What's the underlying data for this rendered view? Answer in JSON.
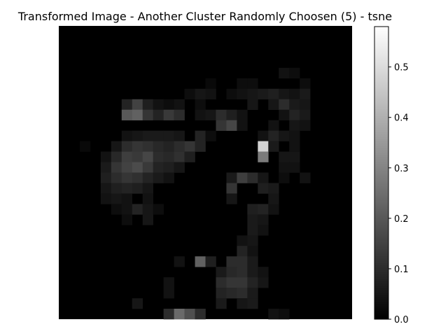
{
  "chart_data": {
    "type": "heatmap",
    "title": "Transformed Image - Another Cluster Randomly Choosen (5) - tsne",
    "colormap": "gray",
    "axes_visible": false,
    "grid": false,
    "vmin": 0.0,
    "vmax": 0.58,
    "colorbar": {
      "ticks": [
        0.0,
        0.1,
        0.2,
        0.3,
        0.4,
        0.5
      ],
      "tick_labels": [
        "0.0",
        "0.1",
        "0.2",
        "0.3",
        "0.4",
        "0.5"
      ]
    },
    "rows": 28,
    "cols": 28,
    "background_value": 0.0,
    "cells": [
      [
        4,
        21,
        0.04
      ],
      [
        4,
        22,
        0.03
      ],
      [
        5,
        14,
        0.02
      ],
      [
        5,
        17,
        0.03
      ],
      [
        5,
        18,
        0.03
      ],
      [
        5,
        23,
        0.03
      ],
      [
        6,
        12,
        0.03
      ],
      [
        6,
        13,
        0.05
      ],
      [
        6,
        14,
        0.04
      ],
      [
        6,
        16,
        0.03
      ],
      [
        6,
        17,
        0.04
      ],
      [
        6,
        18,
        0.05
      ],
      [
        6,
        19,
        0.06
      ],
      [
        6,
        20,
        0.07
      ],
      [
        6,
        21,
        0.05
      ],
      [
        6,
        22,
        0.04
      ],
      [
        6,
        23,
        0.06
      ],
      [
        7,
        6,
        0.08
      ],
      [
        7,
        7,
        0.15
      ],
      [
        7,
        8,
        0.07
      ],
      [
        7,
        9,
        0.04
      ],
      [
        7,
        10,
        0.03
      ],
      [
        7,
        11,
        0.04
      ],
      [
        7,
        13,
        0.03
      ],
      [
        7,
        18,
        0.05
      ],
      [
        7,
        20,
        0.05
      ],
      [
        7,
        21,
        0.1
      ],
      [
        7,
        22,
        0.06
      ],
      [
        7,
        23,
        0.05
      ],
      [
        8,
        6,
        0.2
      ],
      [
        8,
        7,
        0.22
      ],
      [
        8,
        8,
        0.12
      ],
      [
        8,
        9,
        0.08
      ],
      [
        8,
        10,
        0.13
      ],
      [
        8,
        11,
        0.1
      ],
      [
        8,
        13,
        0.04
      ],
      [
        8,
        14,
        0.05
      ],
      [
        8,
        15,
        0.1
      ],
      [
        8,
        16,
        0.07
      ],
      [
        8,
        17,
        0.04
      ],
      [
        8,
        21,
        0.04
      ],
      [
        8,
        22,
        0.08
      ],
      [
        8,
        23,
        0.06
      ],
      [
        9,
        15,
        0.12
      ],
      [
        9,
        16,
        0.16
      ],
      [
        9,
        17,
        0.04
      ],
      [
        9,
        20,
        0.04
      ],
      [
        9,
        22,
        0.05
      ],
      [
        9,
        23,
        0.04
      ],
      [
        10,
        6,
        0.04
      ],
      [
        10,
        7,
        0.05
      ],
      [
        10,
        8,
        0.06
      ],
      [
        10,
        9,
        0.06
      ],
      [
        10,
        10,
        0.06
      ],
      [
        10,
        11,
        0.05
      ],
      [
        10,
        13,
        0.08
      ],
      [
        10,
        14,
        0.03
      ],
      [
        10,
        19,
        0.04
      ],
      [
        10,
        20,
        0.08
      ],
      [
        10,
        21,
        0.05
      ],
      [
        10,
        22,
        0.04
      ],
      [
        11,
        2,
        0.02
      ],
      [
        11,
        5,
        0.05
      ],
      [
        11,
        6,
        0.1
      ],
      [
        11,
        7,
        0.12
      ],
      [
        11,
        8,
        0.11
      ],
      [
        11,
        9,
        0.09
      ],
      [
        11,
        10,
        0.08
      ],
      [
        11,
        11,
        0.1
      ],
      [
        11,
        12,
        0.12
      ],
      [
        11,
        13,
        0.08
      ],
      [
        11,
        19,
        0.48
      ],
      [
        11,
        20,
        0.06
      ],
      [
        11,
        22,
        0.04
      ],
      [
        12,
        4,
        0.04
      ],
      [
        12,
        5,
        0.09
      ],
      [
        12,
        6,
        0.14
      ],
      [
        12,
        7,
        0.13
      ],
      [
        12,
        8,
        0.16
      ],
      [
        12,
        9,
        0.1
      ],
      [
        12,
        10,
        0.09
      ],
      [
        12,
        11,
        0.11
      ],
      [
        12,
        12,
        0.07
      ],
      [
        12,
        19,
        0.28
      ],
      [
        12,
        21,
        0.05
      ],
      [
        12,
        22,
        0.05
      ],
      [
        13,
        4,
        0.06
      ],
      [
        13,
        5,
        0.12
      ],
      [
        13,
        6,
        0.15
      ],
      [
        13,
        7,
        0.17
      ],
      [
        13,
        8,
        0.13
      ],
      [
        13,
        9,
        0.08
      ],
      [
        13,
        10,
        0.07
      ],
      [
        13,
        11,
        0.05
      ],
      [
        13,
        21,
        0.04
      ],
      [
        13,
        22,
        0.04
      ],
      [
        14,
        4,
        0.07
      ],
      [
        14,
        5,
        0.1
      ],
      [
        14,
        6,
        0.12
      ],
      [
        14,
        7,
        0.11
      ],
      [
        14,
        8,
        0.08
      ],
      [
        14,
        9,
        0.06
      ],
      [
        14,
        10,
        0.04
      ],
      [
        14,
        16,
        0.06
      ],
      [
        14,
        17,
        0.14
      ],
      [
        14,
        18,
        0.1
      ],
      [
        14,
        19,
        0.05
      ],
      [
        14,
        21,
        0.03
      ],
      [
        14,
        23,
        0.04
      ],
      [
        15,
        4,
        0.05
      ],
      [
        15,
        5,
        0.07
      ],
      [
        15,
        6,
        0.08
      ],
      [
        15,
        7,
        0.07
      ],
      [
        15,
        8,
        0.05
      ],
      [
        15,
        16,
        0.12
      ],
      [
        15,
        19,
        0.07
      ],
      [
        15,
        20,
        0.06
      ],
      [
        16,
        4,
        0.04
      ],
      [
        16,
        5,
        0.05
      ],
      [
        16,
        6,
        0.04
      ],
      [
        16,
        8,
        0.04
      ],
      [
        16,
        16,
        0.05
      ],
      [
        16,
        20,
        0.05
      ],
      [
        17,
        5,
        0.03
      ],
      [
        17,
        6,
        0.04
      ],
      [
        17,
        7,
        0.08
      ],
      [
        17,
        8,
        0.05
      ],
      [
        17,
        9,
        0.03
      ],
      [
        17,
        18,
        0.07
      ],
      [
        17,
        19,
        0.08
      ],
      [
        17,
        20,
        0.04
      ],
      [
        18,
        6,
        0.03
      ],
      [
        18,
        8,
        0.05
      ],
      [
        18,
        18,
        0.06
      ],
      [
        18,
        19,
        0.05
      ],
      [
        19,
        18,
        0.06
      ],
      [
        19,
        19,
        0.04
      ],
      [
        20,
        17,
        0.04
      ],
      [
        20,
        18,
        0.05
      ],
      [
        21,
        17,
        0.08
      ],
      [
        21,
        18,
        0.04
      ],
      [
        22,
        11,
        0.04
      ],
      [
        22,
        13,
        0.22
      ],
      [
        22,
        14,
        0.07
      ],
      [
        22,
        16,
        0.1
      ],
      [
        22,
        17,
        0.1
      ],
      [
        22,
        18,
        0.06
      ],
      [
        23,
        15,
        0.06
      ],
      [
        23,
        16,
        0.09
      ],
      [
        23,
        17,
        0.1
      ],
      [
        23,
        18,
        0.06
      ],
      [
        23,
        19,
        0.04
      ],
      [
        24,
        10,
        0.04
      ],
      [
        24,
        15,
        0.1
      ],
      [
        24,
        16,
        0.12
      ],
      [
        24,
        17,
        0.12
      ],
      [
        24,
        18,
        0.08
      ],
      [
        24,
        19,
        0.05
      ],
      [
        25,
        10,
        0.04
      ],
      [
        25,
        15,
        0.08
      ],
      [
        25,
        16,
        0.09
      ],
      [
        25,
        17,
        0.1
      ],
      [
        25,
        18,
        0.06
      ],
      [
        26,
        7,
        0.05
      ],
      [
        26,
        15,
        0.06
      ],
      [
        26,
        17,
        0.05
      ],
      [
        26,
        18,
        0.06
      ],
      [
        27,
        10,
        0.1
      ],
      [
        27,
        11,
        0.24
      ],
      [
        27,
        12,
        0.18
      ],
      [
        27,
        13,
        0.1
      ],
      [
        27,
        20,
        0.04
      ],
      [
        27,
        21,
        0.03
      ]
    ]
  }
}
